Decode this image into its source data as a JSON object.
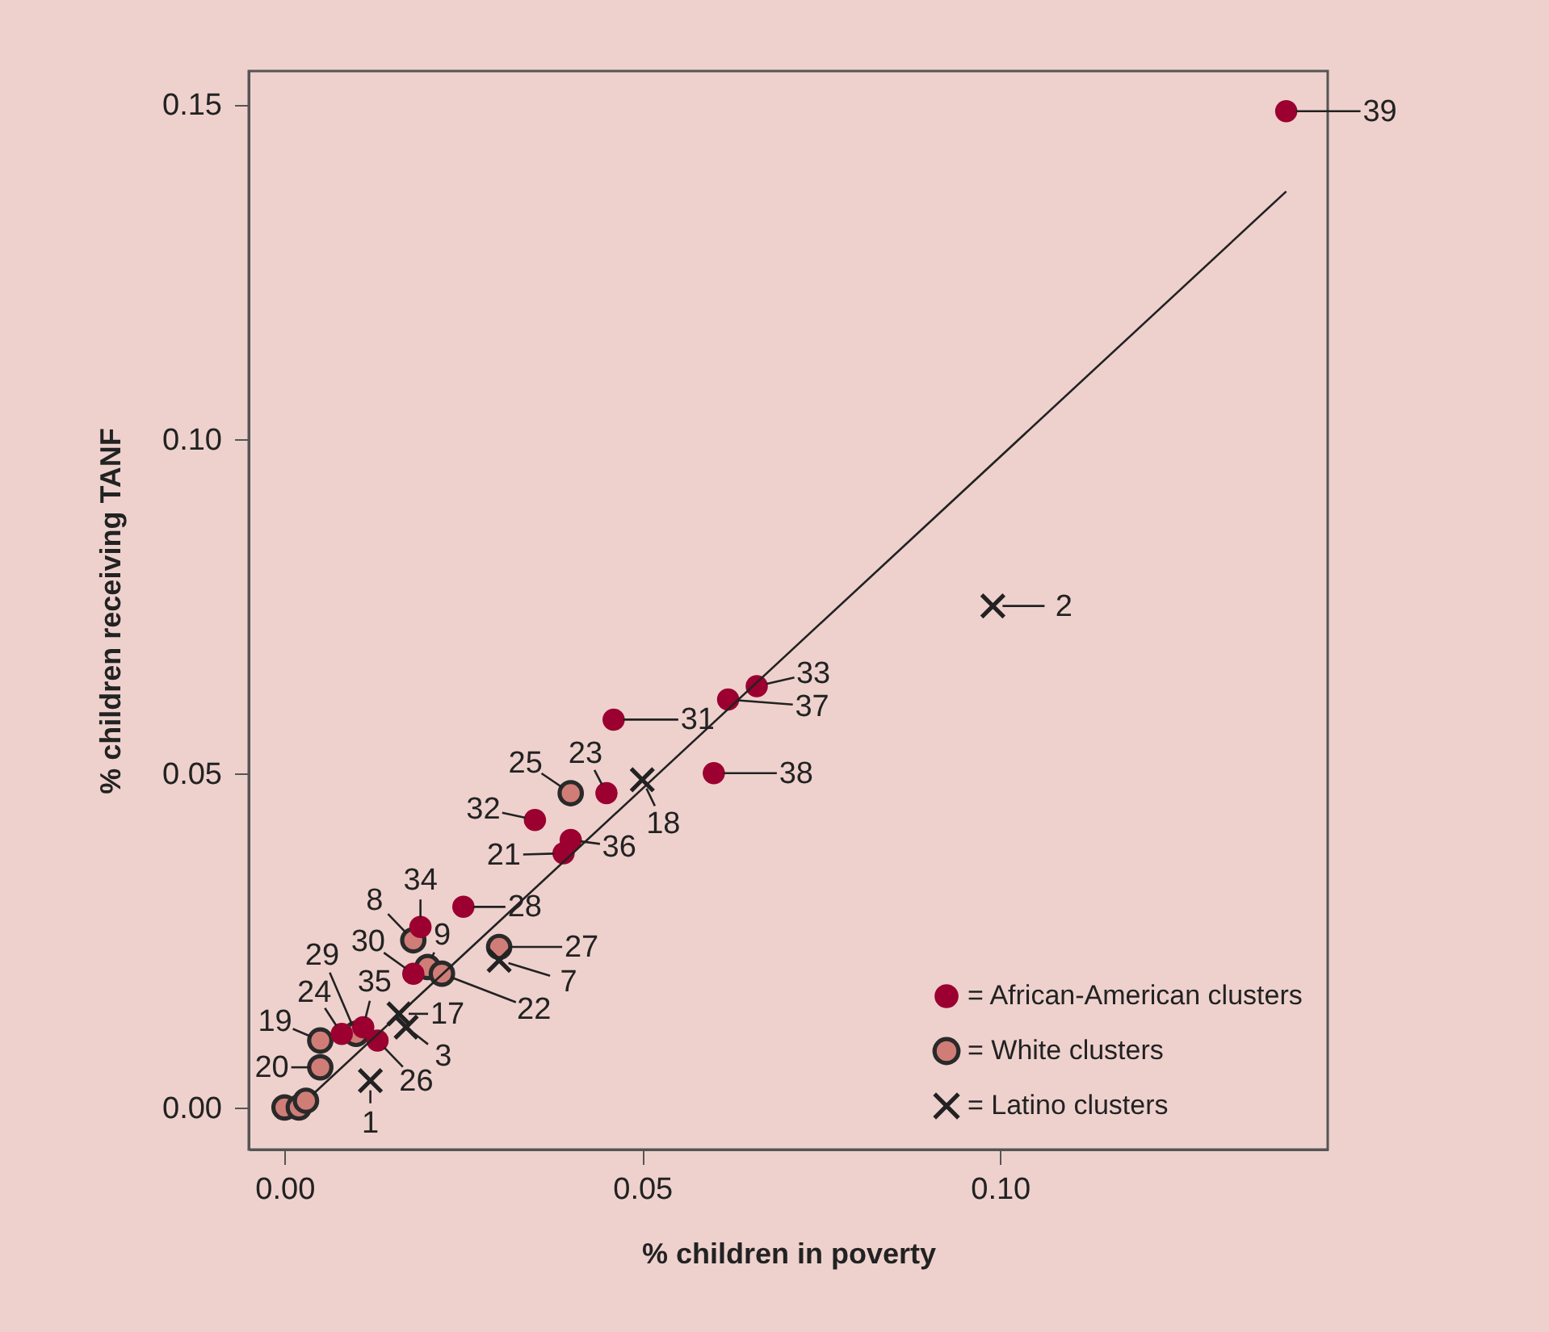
{
  "chart_data": {
    "type": "scatter",
    "xlabel": "% children in poverty",
    "ylabel": "% children receiving TANF",
    "xlim": [
      -0.005,
      0.1458
    ],
    "ylim": [
      -0.0063,
      0.155
    ],
    "xticks": [
      {
        "value": 0,
        "label": "0.00"
      },
      {
        "value": 0.05,
        "label": "0.05"
      },
      {
        "value": 0.1,
        "label": "0.10"
      }
    ],
    "yticks": [
      {
        "value": 0,
        "label": "0.00"
      },
      {
        "value": 0.05,
        "label": "0.05"
      },
      {
        "value": 0.1,
        "label": "0.10"
      },
      {
        "value": 0.15,
        "label": "0.15"
      }
    ],
    "grid": false,
    "legend": "bottom right",
    "series": [
      {
        "name": "= African-American clusters",
        "color": "#9b0030",
        "marker": "circle",
        "x": [
          0.14,
          0.066,
          0.062,
          0.046,
          0.06,
          0.045,
          0.035,
          0.04,
          0.039,
          0.025,
          0.019,
          0.018,
          0.011,
          0.013,
          0.008
        ],
        "values": [
          0.149,
          0.063,
          0.061,
          0.058,
          0.05,
          0.047,
          0.043,
          0.04,
          0.038,
          0.03,
          0.027,
          0.02,
          0.012,
          0.01,
          0.011
        ]
      },
      {
        "name": "= White clusters",
        "color": "#d07d78",
        "marker": "circle",
        "x": [
          0.018,
          0.02,
          0.022,
          0.03,
          0.04,
          0.01,
          0.005,
          0.005,
          0.0,
          0.002,
          0.003
        ],
        "values": [
          0.025,
          0.021,
          0.02,
          0.024,
          0.047,
          0.011,
          0.01,
          0.006,
          0.0,
          0.0,
          0.001
        ]
      },
      {
        "name": "= Latino clusters",
        "color": "#222222",
        "marker": "cross",
        "x": [
          0.099,
          0.05,
          0.03,
          0.016,
          0.017,
          0.012
        ],
        "values": [
          0.075,
          0.049,
          0.022,
          0.014,
          0.012,
          0.004
        ]
      },
      {
        "type": "line",
        "color": "#222222",
        "x": [
          0.004,
          0.14
        ],
        "values": [
          0.002,
          0.137
        ]
      }
    ],
    "annotations": [
      {
        "text": "39",
        "x": 0.14,
        "y": 0.149
      },
      {
        "text": "2",
        "x": 0.099,
        "y": 0.075
      },
      {
        "text": "33",
        "x": 0.066,
        "y": 0.063
      },
      {
        "text": "37",
        "x": 0.062,
        "y": 0.061
      },
      {
        "text": "31",
        "x": 0.046,
        "y": 0.058
      },
      {
        "text": "38",
        "x": 0.06,
        "y": 0.05
      },
      {
        "text": "23",
        "x": 0.045,
        "y": 0.047
      },
      {
        "text": "25",
        "x": 0.04,
        "y": 0.047
      },
      {
        "text": "32",
        "x": 0.035,
        "y": 0.043
      },
      {
        "text": "36",
        "x": 0.04,
        "y": 0.04
      },
      {
        "text": "21",
        "x": 0.039,
        "y": 0.038
      },
      {
        "text": "18",
        "x": 0.05,
        "y": 0.049
      },
      {
        "text": "28",
        "x": 0.025,
        "y": 0.03
      },
      {
        "text": "34",
        "x": 0.019,
        "y": 0.027
      },
      {
        "text": "8",
        "x": 0.018,
        "y": 0.025
      },
      {
        "text": "9",
        "x": 0.02,
        "y": 0.021
      },
      {
        "text": "30",
        "x": 0.018,
        "y": 0.02
      },
      {
        "text": "22",
        "x": 0.022,
        "y": 0.02
      },
      {
        "text": "27",
        "x": 0.03,
        "y": 0.024
      },
      {
        "text": "7",
        "x": 0.03,
        "y": 0.022
      },
      {
        "text": "17",
        "x": 0.016,
        "y": 0.014
      },
      {
        "text": "3",
        "x": 0.017,
        "y": 0.012
      },
      {
        "text": "35",
        "x": 0.011,
        "y": 0.012
      },
      {
        "text": "29",
        "x": 0.01,
        "y": 0.011
      },
      {
        "text": "24",
        "x": 0.008,
        "y": 0.011
      },
      {
        "text": "19",
        "x": 0.005,
        "y": 0.01
      },
      {
        "text": "20",
        "x": 0.005,
        "y": 0.006
      },
      {
        "text": "26",
        "x": 0.013,
        "y": 0.01
      },
      {
        "text": "1",
        "x": 0.012,
        "y": 0.004
      }
    ]
  }
}
